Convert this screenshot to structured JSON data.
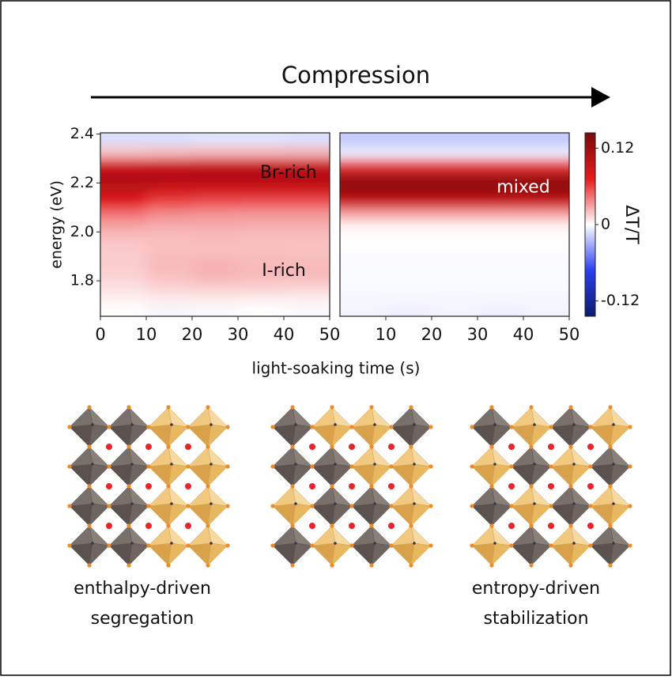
{
  "figure": {
    "title": "Compression",
    "xlabel": "light-soaking time (s)",
    "captions": [
      [
        "enthalpy-driven",
        "segregation"
      ],
      [
        "entropy-driven",
        "stabilization"
      ]
    ]
  },
  "chart_data": [
    {
      "type": "heatmap",
      "xlim": [
        0,
        50
      ],
      "ylim": [
        1.655,
        2.405
      ],
      "xticks": [
        0,
        10,
        20,
        30,
        40,
        50
      ],
      "yticks": [
        {
          "value": 1.8,
          "label": "1.8"
        },
        {
          "value": 2.0,
          "label": "2.0"
        },
        {
          "value": 2.2,
          "label": "2.2"
        },
        {
          "value": 2.4,
          "label": "2.4"
        }
      ],
      "ylabel": "energy (eV)",
      "x": [
        5,
        15,
        25,
        35,
        45
      ],
      "y": [
        1.675,
        1.725,
        1.775,
        1.825,
        1.875,
        1.925,
        1.975,
        2.025,
        2.075,
        2.125,
        2.175,
        2.225,
        2.275,
        2.325,
        2.375
      ],
      "z": [
        [
          0.0,
          -0.003,
          -0.002,
          0.0,
          -0.002
        ],
        [
          0.004,
          0.006,
          0.006,
          0.005,
          0.005
        ],
        [
          0.01,
          0.014,
          0.016,
          0.015,
          0.014
        ],
        [
          0.014,
          0.02,
          0.024,
          0.022,
          0.022
        ],
        [
          0.016,
          0.022,
          0.024,
          0.022,
          0.022
        ],
        [
          0.016,
          0.02,
          0.02,
          0.02,
          0.019
        ],
        [
          0.02,
          0.02,
          0.022,
          0.02,
          0.02
        ],
        [
          0.028,
          0.026,
          0.026,
          0.025,
          0.025
        ],
        [
          0.045,
          0.036,
          0.034,
          0.033,
          0.033
        ],
        [
          0.075,
          0.06,
          0.056,
          0.055,
          0.055
        ],
        [
          0.1,
          0.09,
          0.088,
          0.088,
          0.088
        ],
        [
          0.11,
          0.11,
          0.11,
          0.11,
          0.108
        ],
        [
          0.085,
          0.09,
          0.092,
          0.092,
          0.092
        ],
        [
          0.02,
          0.022,
          0.024,
          0.024,
          0.024
        ],
        [
          -0.012,
          -0.012,
          -0.01,
          -0.01,
          -0.012
        ]
      ],
      "annotations": [
        {
          "text": "Br-rich",
          "x": 41,
          "y": 2.24,
          "color": "#111111"
        },
        {
          "text": "I-rich",
          "x": 40,
          "y": 1.84,
          "color": "#111111"
        }
      ]
    },
    {
      "type": "heatmap",
      "xlim": [
        0,
        50
      ],
      "ylim": [
        1.655,
        2.405
      ],
      "xticks": [
        10,
        20,
        30,
        40,
        50
      ],
      "x": [
        5,
        15,
        25,
        35,
        45
      ],
      "y": [
        1.675,
        1.725,
        1.775,
        1.825,
        1.875,
        1.925,
        1.975,
        2.025,
        2.075,
        2.125,
        2.175,
        2.225,
        2.275,
        2.325,
        2.375
      ],
      "z": [
        [
          -0.004,
          -0.006,
          -0.004,
          -0.006,
          -0.004
        ],
        [
          -0.003,
          -0.003,
          -0.003,
          -0.003,
          -0.003
        ],
        [
          -0.002,
          -0.002,
          -0.002,
          -0.002,
          -0.002
        ],
        [
          -0.002,
          -0.002,
          -0.002,
          -0.002,
          -0.002
        ],
        [
          -0.002,
          -0.002,
          -0.002,
          -0.002,
          -0.002
        ],
        [
          -0.001,
          -0.001,
          -0.001,
          -0.001,
          -0.001
        ],
        [
          0.0,
          0.0,
          0.0,
          0.0,
          0.0
        ],
        [
          0.004,
          0.004,
          0.004,
          0.004,
          0.004
        ],
        [
          0.03,
          0.03,
          0.03,
          0.03,
          0.03
        ],
        [
          0.09,
          0.09,
          0.09,
          0.09,
          0.09
        ],
        [
          0.13,
          0.13,
          0.13,
          0.13,
          0.13
        ],
        [
          0.12,
          0.12,
          0.12,
          0.12,
          0.12
        ],
        [
          0.06,
          0.06,
          0.06,
          0.06,
          0.06
        ],
        [
          -0.006,
          -0.006,
          -0.006,
          -0.006,
          -0.006
        ],
        [
          -0.02,
          -0.02,
          -0.02,
          -0.02,
          -0.02
        ]
      ],
      "annotations": [
        {
          "text": "mixed",
          "x": 40,
          "y": 2.18,
          "color": "#ffffff"
        }
      ]
    },
    {
      "type": "colorbar",
      "ylim": [
        -0.144,
        0.144
      ],
      "yticks": [
        {
          "value": -0.12,
          "label": "-0.12"
        },
        0,
        {
          "value": 0.12,
          "label": "0.12"
        }
      ],
      "label": "ΔT/T",
      "colormap": [
        "#0b1a6e",
        "#2a3ff0",
        "#ffffff",
        "#e8191b",
        "#7a0a0a"
      ]
    }
  ]
}
